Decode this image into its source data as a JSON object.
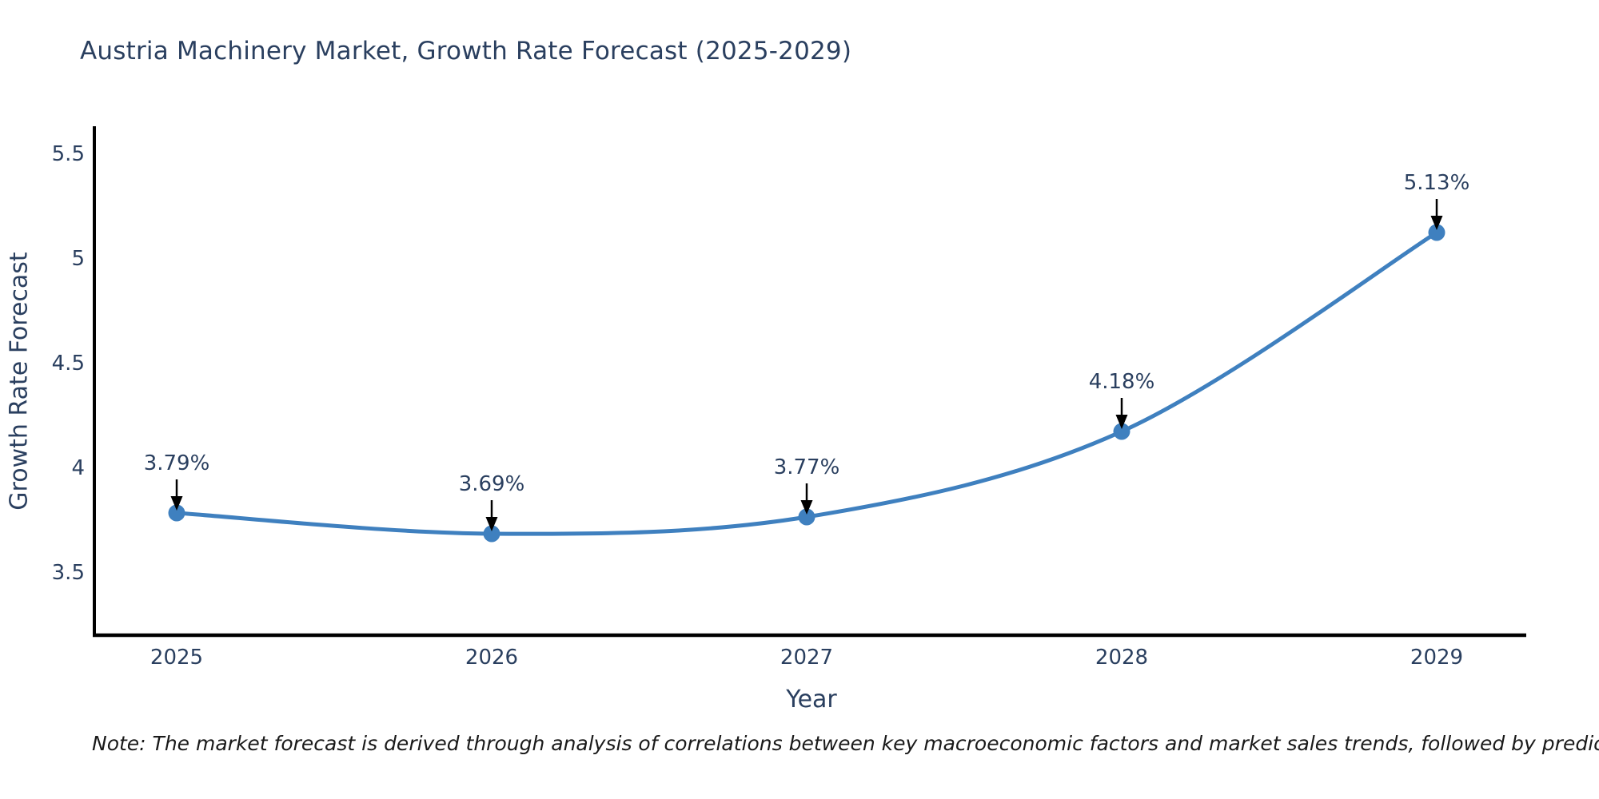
{
  "title": "Austria Machinery Market, Growth Rate Forecast (2025-2029)",
  "note": "Note: The market forecast is derived through analysis of correlations between key macroeconomic factors and market sales trends, followed by predictive modeling to project future sales",
  "chart_data": {
    "type": "line",
    "title": "Austria Machinery Market, Growth Rate Forecast (2025-2029)",
    "xlabel": "Year",
    "ylabel": "Growth Rate Forecast",
    "categories": [
      "2025",
      "2026",
      "2027",
      "2028",
      "2029"
    ],
    "values": [
      3.79,
      3.69,
      3.77,
      4.18,
      5.13
    ],
    "series": [
      {
        "name": "Growth Rate Forecast",
        "values": [
          3.79,
          3.69,
          3.77,
          4.18,
          5.13
        ]
      }
    ],
    "point_labels": [
      "3.79%",
      "3.69%",
      "3.77%",
      "4.18%",
      "5.13%"
    ],
    "ytick_labels": [
      "3.5",
      "4",
      "4.5",
      "5",
      "5.5"
    ],
    "ylim": [
      3.23,
      5.65
    ],
    "line_shape": "spline",
    "grid": false,
    "legend": false,
    "colors": {
      "line": "#3f80bf",
      "marker": "#3f80bf",
      "axis": "#000000",
      "text": "#2a3f5f",
      "arrow": "#000000",
      "background": "#ffffff"
    }
  }
}
